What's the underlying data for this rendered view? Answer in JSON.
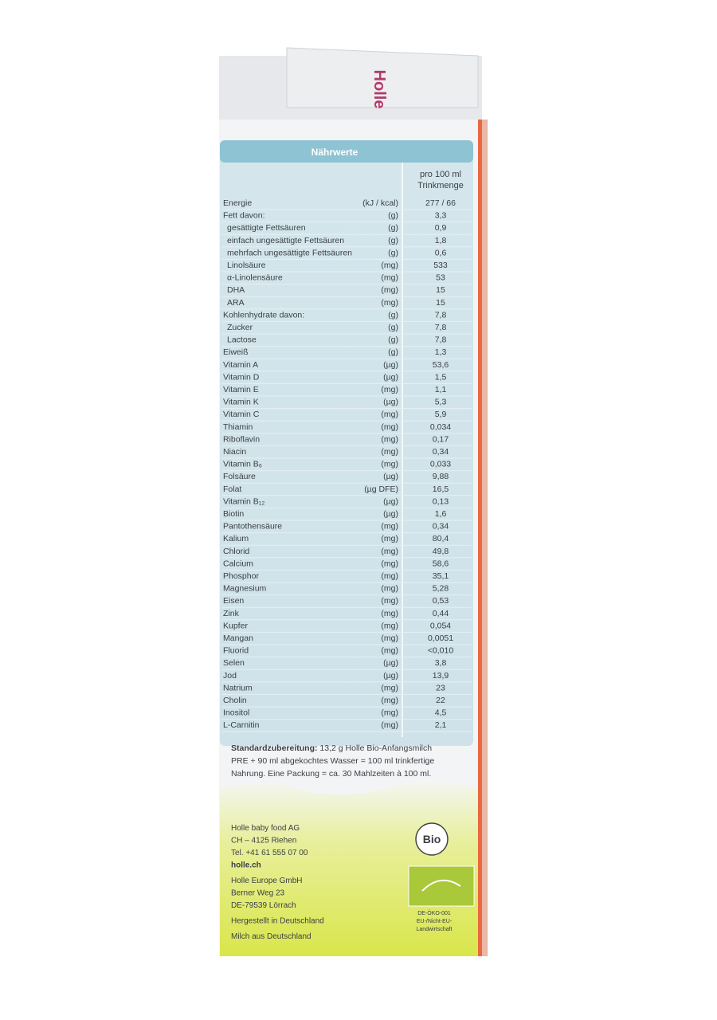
{
  "brand": "Holle",
  "table": {
    "title": "Nährwerte",
    "column_header": [
      "pro 100 ml",
      "Trinkmenge"
    ],
    "rows": [
      [
        "Energie",
        "(kJ / kcal)",
        "277 / 66"
      ],
      [
        "Fett davon:",
        "(g)",
        "3,3"
      ],
      [
        "gesättigte Fettsäuren",
        "(g)",
        "0,9"
      ],
      [
        "einfach ungesättigte Fettsäuren",
        "(g)",
        "1,8"
      ],
      [
        "mehrfach ungesättigte Fettsäuren",
        "(g)",
        "0,6"
      ],
      [
        "Linolsäure",
        "(mg)",
        "533"
      ],
      [
        "α-Linolensäure",
        "(mg)",
        "53"
      ],
      [
        "DHA",
        "(mg)",
        "15"
      ],
      [
        "ARA",
        "(mg)",
        "15"
      ],
      [
        "Kohlenhydrate davon:",
        "(g)",
        "7,8"
      ],
      [
        "Zucker",
        "(g)",
        "7,8"
      ],
      [
        "Lactose",
        "(g)",
        "7,8"
      ],
      [
        "Eiweiß",
        "(g)",
        "1,3"
      ],
      [
        "Vitamin A",
        "(µg)",
        "53,6"
      ],
      [
        "Vitamin D",
        "(µg)",
        "1,5"
      ],
      [
        "Vitamin E",
        "(mg)",
        "1,1"
      ],
      [
        "Vitamin K",
        "(µg)",
        "5,3"
      ],
      [
        "Vitamin C",
        "(mg)",
        "5,9"
      ],
      [
        "Thiamin",
        "(mg)",
        "0,034"
      ],
      [
        "Riboflavin",
        "(mg)",
        "0,17"
      ],
      [
        "Niacin",
        "(mg)",
        "0,34"
      ],
      [
        "Vitamin B₆",
        "(mg)",
        "0,033"
      ],
      [
        "Folsäure",
        "(µg)",
        "9,88"
      ],
      [
        "Folat",
        "(µg DFE)",
        "16,5"
      ],
      [
        "Vitamin B₁₂",
        "(µg)",
        "0,13"
      ],
      [
        "Biotin",
        "(µg)",
        "1,6"
      ],
      [
        "Pantothensäure",
        "(mg)",
        "0,34"
      ],
      [
        "Kalium",
        "(mg)",
        "80,4"
      ],
      [
        "Chlorid",
        "(mg)",
        "49,8"
      ],
      [
        "Calcium",
        "(mg)",
        "58,6"
      ],
      [
        "Phosphor",
        "(mg)",
        "35,1"
      ],
      [
        "Magnesium",
        "(mg)",
        "5,28"
      ],
      [
        "Eisen",
        "(mg)",
        "0,53"
      ],
      [
        "Zink",
        "(mg)",
        "0,44"
      ],
      [
        "Kupfer",
        "(mg)",
        "0,054"
      ],
      [
        "Mangan",
        "(mg)",
        "0,0051"
      ],
      [
        "Fluorid",
        "(mg)",
        "<0,010"
      ],
      [
        "Selen",
        "(µg)",
        "3,8"
      ],
      [
        "Jod",
        "(µg)",
        "13,9"
      ],
      [
        "Natrium",
        "(mg)",
        "23"
      ],
      [
        "Cholin",
        "(mg)",
        "22"
      ],
      [
        "Inositol",
        "(mg)",
        "4,5"
      ],
      [
        "L-Carnitin",
        "(mg)",
        "2,1"
      ]
    ]
  },
  "preparation": {
    "label": "Standardzubereitung:",
    "lines": [
      " 13,2 g Holle Bio-Anfangsmilch",
      "PRE + 90 ml abgekochtes Wasser = 100 ml trinkfertige",
      "Nahrung. Eine Packung = ca. 30 Mahlzeiten à 100 ml."
    ]
  },
  "addresses": [
    [
      "Holle baby food AG",
      "CH – 4125 Riehen",
      "Tel. +41 61 555 07 00",
      "holle.ch"
    ],
    [
      "Holle Europe GmbH",
      "Berner Weg 23",
      "DE-79539 Lörrach"
    ],
    [
      "Hergestellt in Deutschland"
    ],
    [
      "Milch aus Deutschland"
    ]
  ],
  "bio_logo": "Bio",
  "eu_organic": [
    "DE-ÖKO-001",
    "EU-/Nicht-EU-",
    "Landwirtschaft"
  ]
}
